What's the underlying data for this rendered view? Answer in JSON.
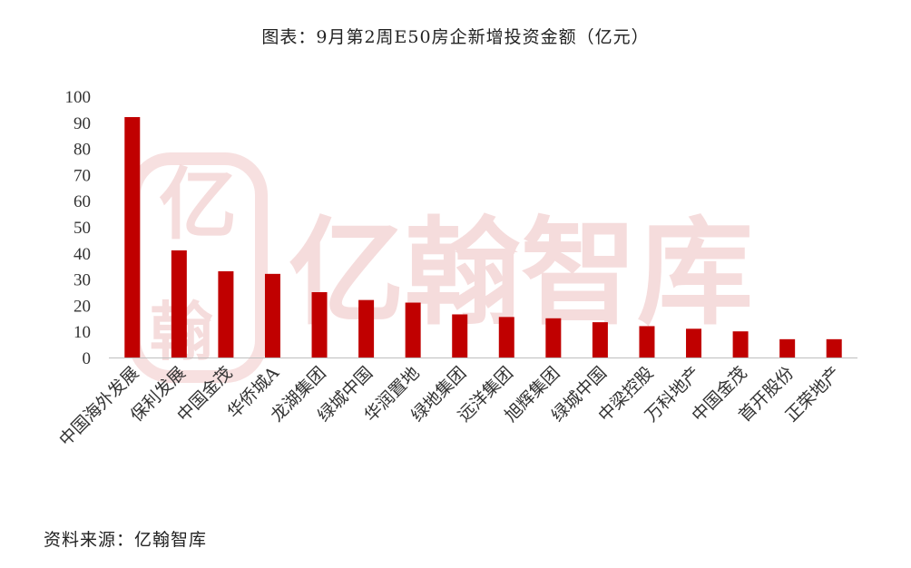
{
  "title": "图表：9月第2周E50房企新增投资金额（亿元）",
  "source": "资料来源：亿翰智库",
  "watermark": {
    "text": "亿翰智库",
    "logo_chars": [
      "亿",
      "翰"
    ],
    "color": "#f0c6c6"
  },
  "colors": {
    "bar": "#c00000",
    "axis": "#bfbfbf"
  },
  "chart_data": {
    "type": "bar",
    "categories": [
      "中国海外发展",
      "保利发展",
      "中国金茂",
      "华侨城A",
      "龙湖集团",
      "绿城中国",
      "华润置地",
      "绿地集团",
      "远洋集团",
      "旭辉集团",
      "绿城中国",
      "中梁控股",
      "万科地产",
      "中国金茂",
      "首开股份",
      "正荣地产"
    ],
    "values": [
      92,
      41,
      33,
      32,
      25,
      22,
      21,
      16.5,
      15.5,
      15,
      13.5,
      12,
      11,
      10,
      7,
      7
    ],
    "yticks": [
      0,
      10,
      20,
      30,
      40,
      50,
      60,
      70,
      80,
      90,
      100
    ],
    "ylim": [
      0,
      100
    ],
    "grid": false,
    "legend": false
  }
}
